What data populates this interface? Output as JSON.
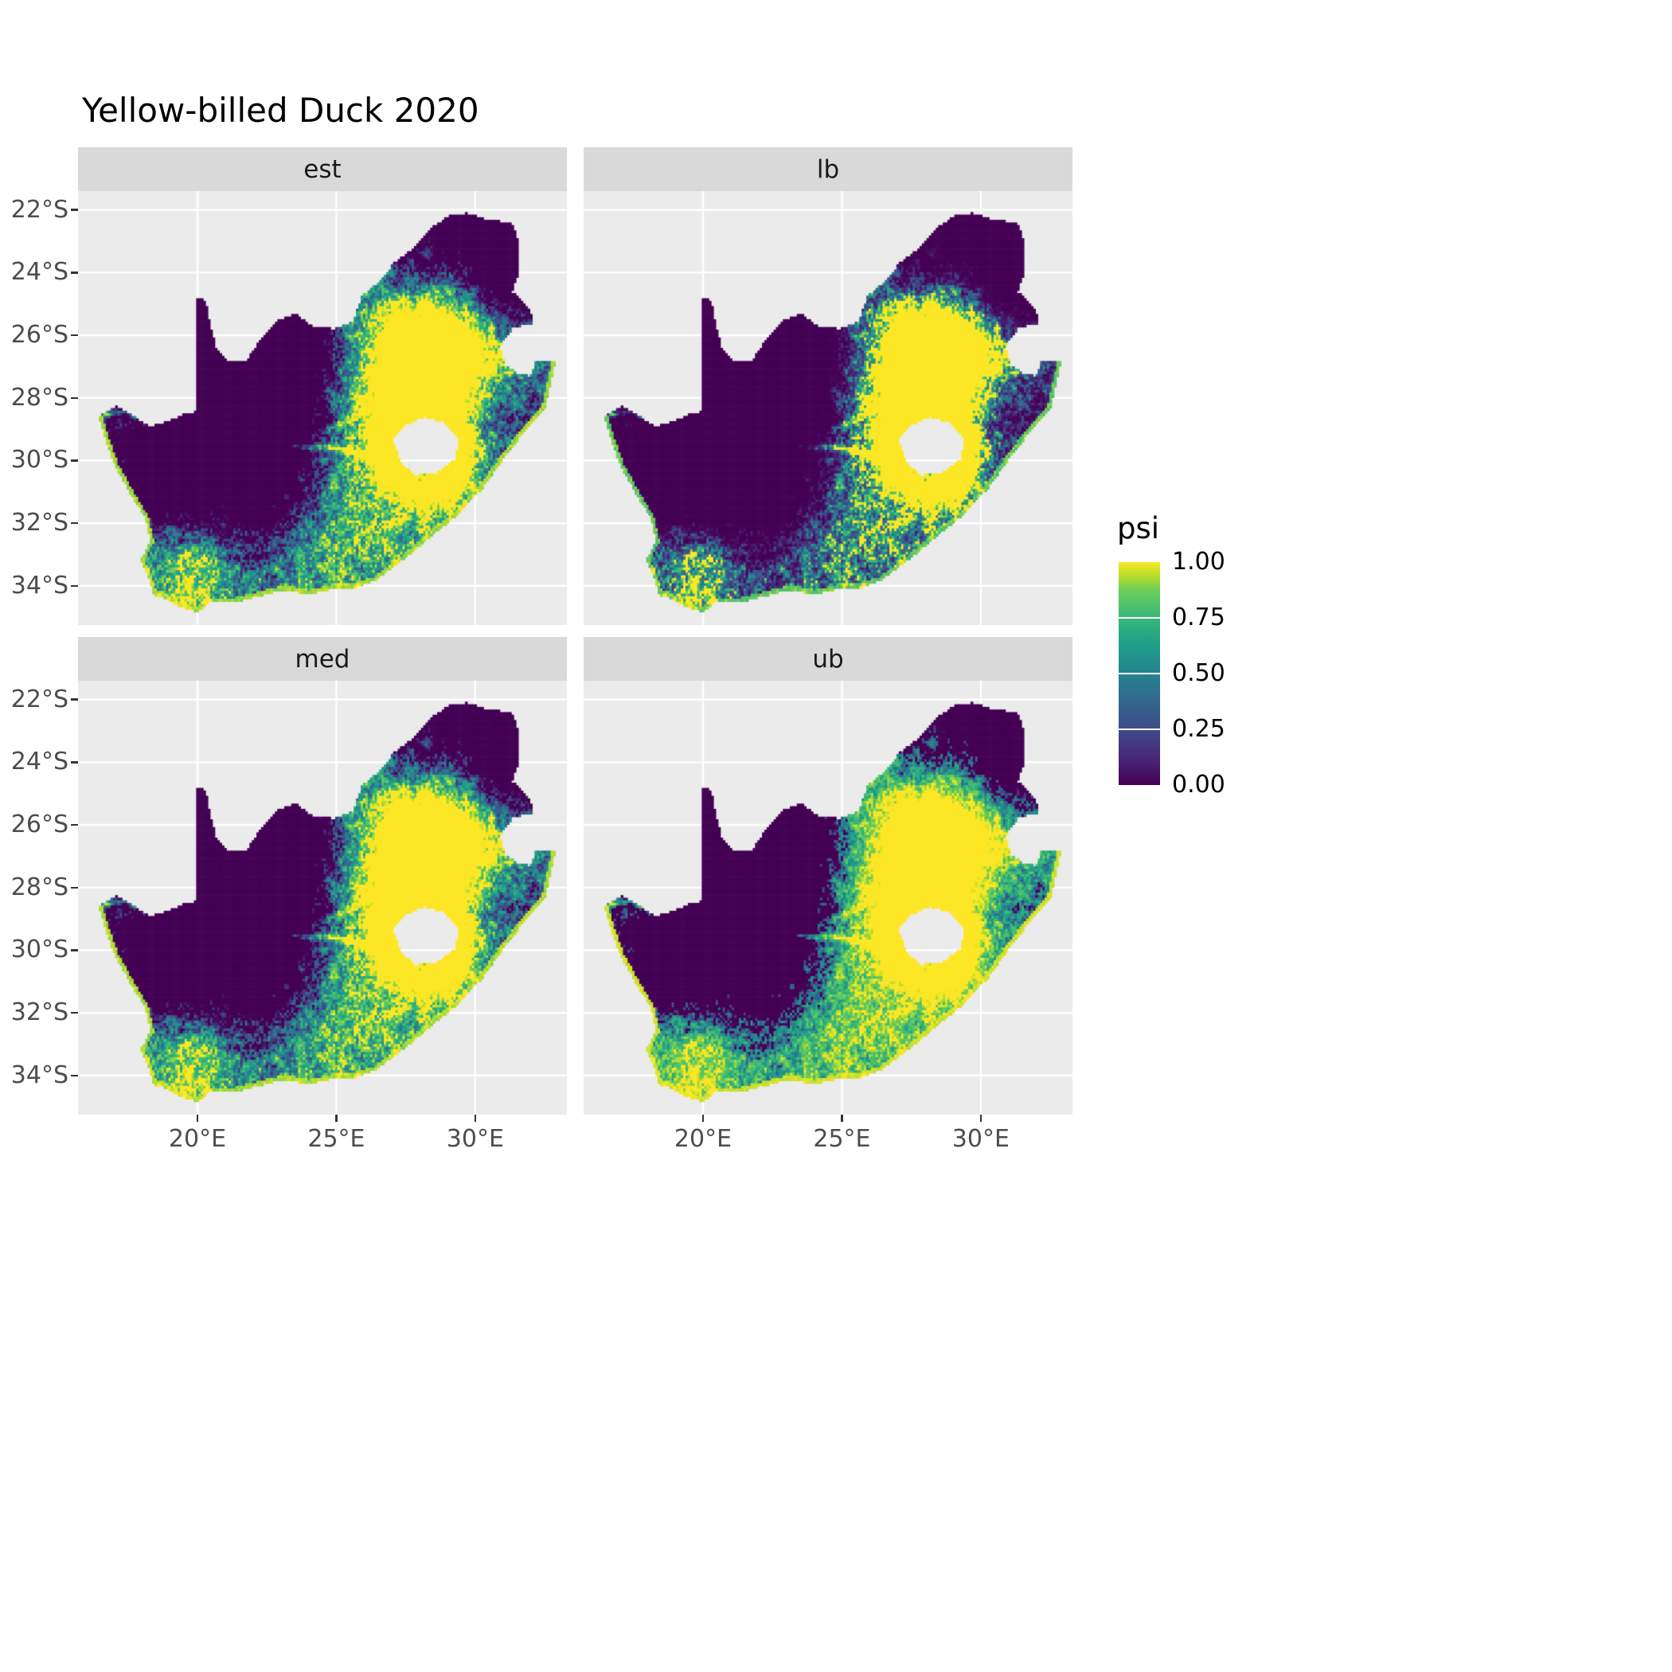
{
  "colors": {
    "panel_bg": "#EBEBEB",
    "strip_bg": "#D9D9D9",
    "grid": "#FFFFFF",
    "title_text": "#000000",
    "axis_text": "#4D4D4D",
    "tick": "#333333",
    "background": "#FFFFFF"
  },
  "chart_data": {
    "type": "heatmap",
    "subtype": "faceted_raster_map",
    "title": "Yellow-billed Duck 2020",
    "region": "South Africa",
    "value_name": "psi",
    "value_range": [
      0,
      1
    ],
    "facet_layout": {
      "rows": 2,
      "cols": 2,
      "order": [
        "est",
        "lb",
        "med",
        "ub"
      ]
    },
    "facets": [
      {
        "label": "est",
        "value_exponent": 1.0
      },
      {
        "label": "lb",
        "value_exponent": 2.0
      },
      {
        "label": "med",
        "value_exponent": 0.85
      },
      {
        "label": "ub",
        "value_exponent": 0.48
      }
    ],
    "x_axis": {
      "range": [
        15.7,
        33.3
      ],
      "ticks": [
        {
          "label": "20°E",
          "value": 20
        },
        {
          "label": "25°E",
          "value": 25
        },
        {
          "label": "30°E",
          "value": 30
        }
      ]
    },
    "y_axis": {
      "range": [
        -35.25,
        -21.4
      ],
      "ticks": [
        {
          "label": "22°S",
          "value": -22
        },
        {
          "label": "24°S",
          "value": -24
        },
        {
          "label": "26°S",
          "value": -26
        },
        {
          "label": "28°S",
          "value": -28
        },
        {
          "label": "30°S",
          "value": -30
        },
        {
          "label": "32°S",
          "value": -32
        },
        {
          "label": "34°S",
          "value": -34
        }
      ]
    },
    "legend": {
      "title": "psi",
      "breaks": [
        {
          "label": "1.00",
          "value": 1.0
        },
        {
          "label": "0.75",
          "value": 0.75
        },
        {
          "label": "0.50",
          "value": 0.5
        },
        {
          "label": "0.25",
          "value": 0.25
        },
        {
          "label": "0.00",
          "value": 0.0
        }
      ]
    },
    "colormap": {
      "name": "viridis",
      "stops": [
        {
          "t": 0.0,
          "color": "#440154"
        },
        {
          "t": 0.125,
          "color": "#482878"
        },
        {
          "t": 0.25,
          "color": "#3E4A89"
        },
        {
          "t": 0.375,
          "color": "#31688E"
        },
        {
          "t": 0.5,
          "color": "#26828E"
        },
        {
          "t": 0.625,
          "color": "#1F9E89"
        },
        {
          "t": 0.75,
          "color": "#35B779"
        },
        {
          "t": 0.875,
          "color": "#6DCD59"
        },
        {
          "t": 0.9375,
          "color": "#B4DE2C"
        },
        {
          "t": 1.0,
          "color": "#FDE725"
        }
      ]
    },
    "cell_size_deg": 0.0833,
    "boundary_outer": [
      [
        16.45,
        -28.58
      ],
      [
        17.05,
        -28.25
      ],
      [
        17.65,
        -28.55
      ],
      [
        18.25,
        -28.9
      ],
      [
        18.9,
        -28.75
      ],
      [
        19.5,
        -28.5
      ],
      [
        19.98,
        -28.42
      ],
      [
        19.98,
        -26.5
      ],
      [
        19.98,
        -24.77
      ],
      [
        20.28,
        -24.9
      ],
      [
        20.45,
        -25.7
      ],
      [
        20.65,
        -26.35
      ],
      [
        21.1,
        -26.85
      ],
      [
        21.7,
        -26.85
      ],
      [
        22.25,
        -26.15
      ],
      [
        22.9,
        -25.5
      ],
      [
        23.5,
        -25.3
      ],
      [
        24.2,
        -25.75
      ],
      [
        24.95,
        -25.78
      ],
      [
        25.6,
        -25.55
      ],
      [
        25.9,
        -24.75
      ],
      [
        26.5,
        -24.3
      ],
      [
        27.1,
        -23.65
      ],
      [
        27.7,
        -23.25
      ],
      [
        28.35,
        -22.6
      ],
      [
        29.0,
        -22.2
      ],
      [
        29.7,
        -22.1
      ],
      [
        30.35,
        -22.3
      ],
      [
        31.3,
        -22.4
      ],
      [
        31.55,
        -23.1
      ],
      [
        31.55,
        -24.0
      ],
      [
        31.3,
        -24.6
      ],
      [
        31.95,
        -25.15
      ],
      [
        32.05,
        -25.65
      ],
      [
        31.35,
        -25.72
      ],
      [
        30.85,
        -26.35
      ],
      [
        31.05,
        -26.95
      ],
      [
        31.5,
        -27.2
      ],
      [
        31.95,
        -27.3
      ],
      [
        32.15,
        -26.85
      ],
      [
        32.85,
        -26.85
      ],
      [
        32.5,
        -28.3
      ],
      [
        31.9,
        -28.9
      ],
      [
        31.05,
        -29.85
      ],
      [
        30.25,
        -30.85
      ],
      [
        29.35,
        -31.7
      ],
      [
        28.45,
        -32.35
      ],
      [
        27.45,
        -33.1
      ],
      [
        26.4,
        -33.8
      ],
      [
        25.6,
        -34.05
      ],
      [
        24.9,
        -34.05
      ],
      [
        24.0,
        -34.25
      ],
      [
        23.1,
        -34.1
      ],
      [
        22.2,
        -34.3
      ],
      [
        21.3,
        -34.5
      ],
      [
        20.4,
        -34.5
      ],
      [
        20.0,
        -34.82
      ],
      [
        19.3,
        -34.62
      ],
      [
        18.8,
        -34.35
      ],
      [
        18.4,
        -34.25
      ],
      [
        18.3,
        -33.85
      ],
      [
        17.95,
        -33.15
      ],
      [
        18.3,
        -32.55
      ],
      [
        18.1,
        -31.8
      ],
      [
        17.55,
        -31.0
      ],
      [
        17.0,
        -30.1
      ],
      [
        16.7,
        -29.35
      ]
    ],
    "coast_start_index": 40,
    "boundary_lesotho_hole": [
      [
        27.0,
        -29.3
      ],
      [
        27.45,
        -28.85
      ],
      [
        28.15,
        -28.6
      ],
      [
        28.85,
        -28.75
      ],
      [
        29.4,
        -29.3
      ],
      [
        29.25,
        -29.95
      ],
      [
        28.55,
        -30.4
      ],
      [
        27.8,
        -30.45
      ],
      [
        27.3,
        -30.05
      ]
    ],
    "rivers": [
      {
        "name": "orange",
        "weight": 0.5,
        "width": 0.1,
        "points": [
          [
            16.6,
            -28.55
          ],
          [
            17.4,
            -28.4
          ],
          [
            18.1,
            -28.8
          ],
          [
            19.0,
            -28.7
          ],
          [
            19.9,
            -28.5
          ],
          [
            20.8,
            -28.85
          ],
          [
            21.7,
            -29.0
          ],
          [
            22.6,
            -29.2
          ],
          [
            23.6,
            -29.55
          ],
          [
            24.6,
            -29.55
          ],
          [
            25.6,
            -29.7
          ],
          [
            26.6,
            -30.1
          ],
          [
            27.3,
            -30.3
          ]
        ]
      },
      {
        "name": "vaal",
        "weight": 0.35,
        "width": 0.11,
        "points": [
          [
            24.6,
            -29.0
          ],
          [
            25.3,
            -28.75
          ],
          [
            26.1,
            -28.35
          ],
          [
            26.9,
            -27.9
          ],
          [
            27.7,
            -27.4
          ],
          [
            28.5,
            -27.0
          ],
          [
            29.2,
            -26.75
          ]
        ]
      }
    ],
    "density_model": {
      "baseline": 0.4,
      "contrast": 1.25,
      "coast_rim": {
        "dist": 0.13,
        "value": 0.92
      },
      "lesotho_ring": {
        "lon": 28.2,
        "lat": -29.55,
        "radius": 1.45,
        "width": 0.55,
        "weight": 0.5
      },
      "noise": [
        {
          "freq": 12,
          "amp": 0.58
        },
        {
          "freq": 3.5,
          "amp": 0.36
        }
      ],
      "blobs": [
        {
          "lon": 28.2,
          "lat": -26.2,
          "sigma": 1.9,
          "weight": 0.95
        },
        {
          "lon": 29.6,
          "lat": -26.5,
          "sigma": 1.2,
          "weight": 0.45
        },
        {
          "lon": 26.2,
          "lat": -28.6,
          "sigma": 1.7,
          "weight": 0.5
        },
        {
          "lon": 29.0,
          "lat": -30.9,
          "sigma": 1.0,
          "weight": 0.35
        },
        {
          "lon": 19.7,
          "lat": -33.7,
          "sigma": 1.3,
          "weight": 0.6
        },
        {
          "lon": 23.5,
          "lat": -33.6,
          "sigma": 1.5,
          "weight": 0.35
        },
        {
          "lon": 26.8,
          "lat": -32.9,
          "sigma": 1.2,
          "weight": 0.3
        },
        {
          "lon": 24.9,
          "lat": -30.6,
          "sigma": 1.3,
          "weight": 0.25
        },
        {
          "lon": 20.8,
          "lat": -27.8,
          "sigma": 2.5,
          "weight": -0.95
        },
        {
          "lon": 18.9,
          "lat": -30.6,
          "sigma": 1.6,
          "weight": -0.55
        },
        {
          "lon": 23.2,
          "lat": -26.6,
          "sigma": 1.7,
          "weight": -0.6
        },
        {
          "lon": 23.0,
          "lat": -29.5,
          "sigma": 1.6,
          "weight": -0.45
        },
        {
          "lon": 29.8,
          "lat": -23.1,
          "sigma": 1.7,
          "weight": -0.8
        },
        {
          "lon": 31.4,
          "lat": -24.6,
          "sigma": 1.1,
          "weight": -0.5
        },
        {
          "lon": 27.3,
          "lat": -23.6,
          "sigma": 1.0,
          "weight": -0.35
        },
        {
          "lon": 22.4,
          "lat": -32.3,
          "sigma": 1.3,
          "weight": -0.35
        },
        {
          "lon": 30.7,
          "lat": -28.3,
          "sigma": 0.9,
          "weight": -0.25
        }
      ]
    }
  }
}
